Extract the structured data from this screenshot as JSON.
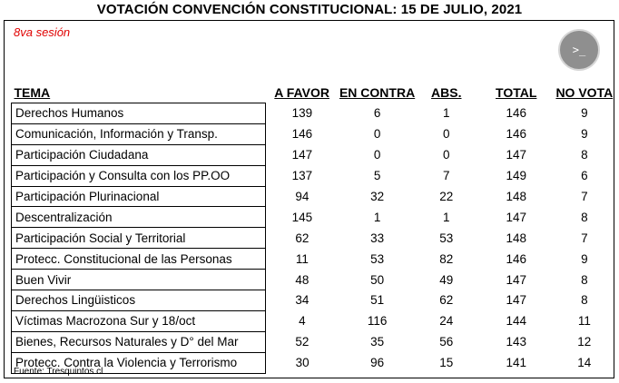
{
  "title": "VOTACIÓN CONVENCIÓN CONSTITUCIONAL: 15 DE JULIO, 2021",
  "session": "8va sesión",
  "terminal_glyph": ">_",
  "headers": [
    "TEMA",
    "A FAVOR",
    "EN CONTRA",
    "ABS.",
    "TOTAL",
    "NO VOTA"
  ],
  "rows": [
    [
      "Derechos Humanos",
      "139",
      "6",
      "1",
      "146",
      "9"
    ],
    [
      "Comunicación, Información y Transp.",
      "146",
      "0",
      "0",
      "146",
      "9"
    ],
    [
      "Participación Ciudadana",
      "147",
      "0",
      "0",
      "147",
      "8"
    ],
    [
      "Participación y Consulta con los PP.OO",
      "137",
      "5",
      "7",
      "149",
      "6"
    ],
    [
      "Participación Plurinacional",
      "94",
      "32",
      "22",
      "148",
      "7"
    ],
    [
      "Descentralización",
      "145",
      "1",
      "1",
      "147",
      "8"
    ],
    [
      "Participación Social y Territorial",
      "62",
      "33",
      "53",
      "148",
      "7"
    ],
    [
      "Protecc. Constitucional de las Personas",
      "11",
      "53",
      "82",
      "146",
      "9"
    ],
    [
      "Buen Vivir",
      "48",
      "50",
      "49",
      "147",
      "8"
    ],
    [
      "Derechos Lingüisticos",
      "34",
      "51",
      "62",
      "147",
      "8"
    ],
    [
      "Víctimas Macrozona Sur y 18/oct",
      "4",
      "116",
      "24",
      "144",
      "11"
    ],
    [
      "Bienes, Recursos Naturales y D° del Mar",
      "52",
      "35",
      "56",
      "143",
      "12"
    ],
    [
      "Protecc. Contra la Violencia y Terrorismo",
      "30",
      "96",
      "15",
      "141",
      "14"
    ]
  ],
  "source": "Fuente: Tresquintos.cl",
  "colors": {
    "session": "#e00000",
    "button": "#8f8f8f"
  }
}
